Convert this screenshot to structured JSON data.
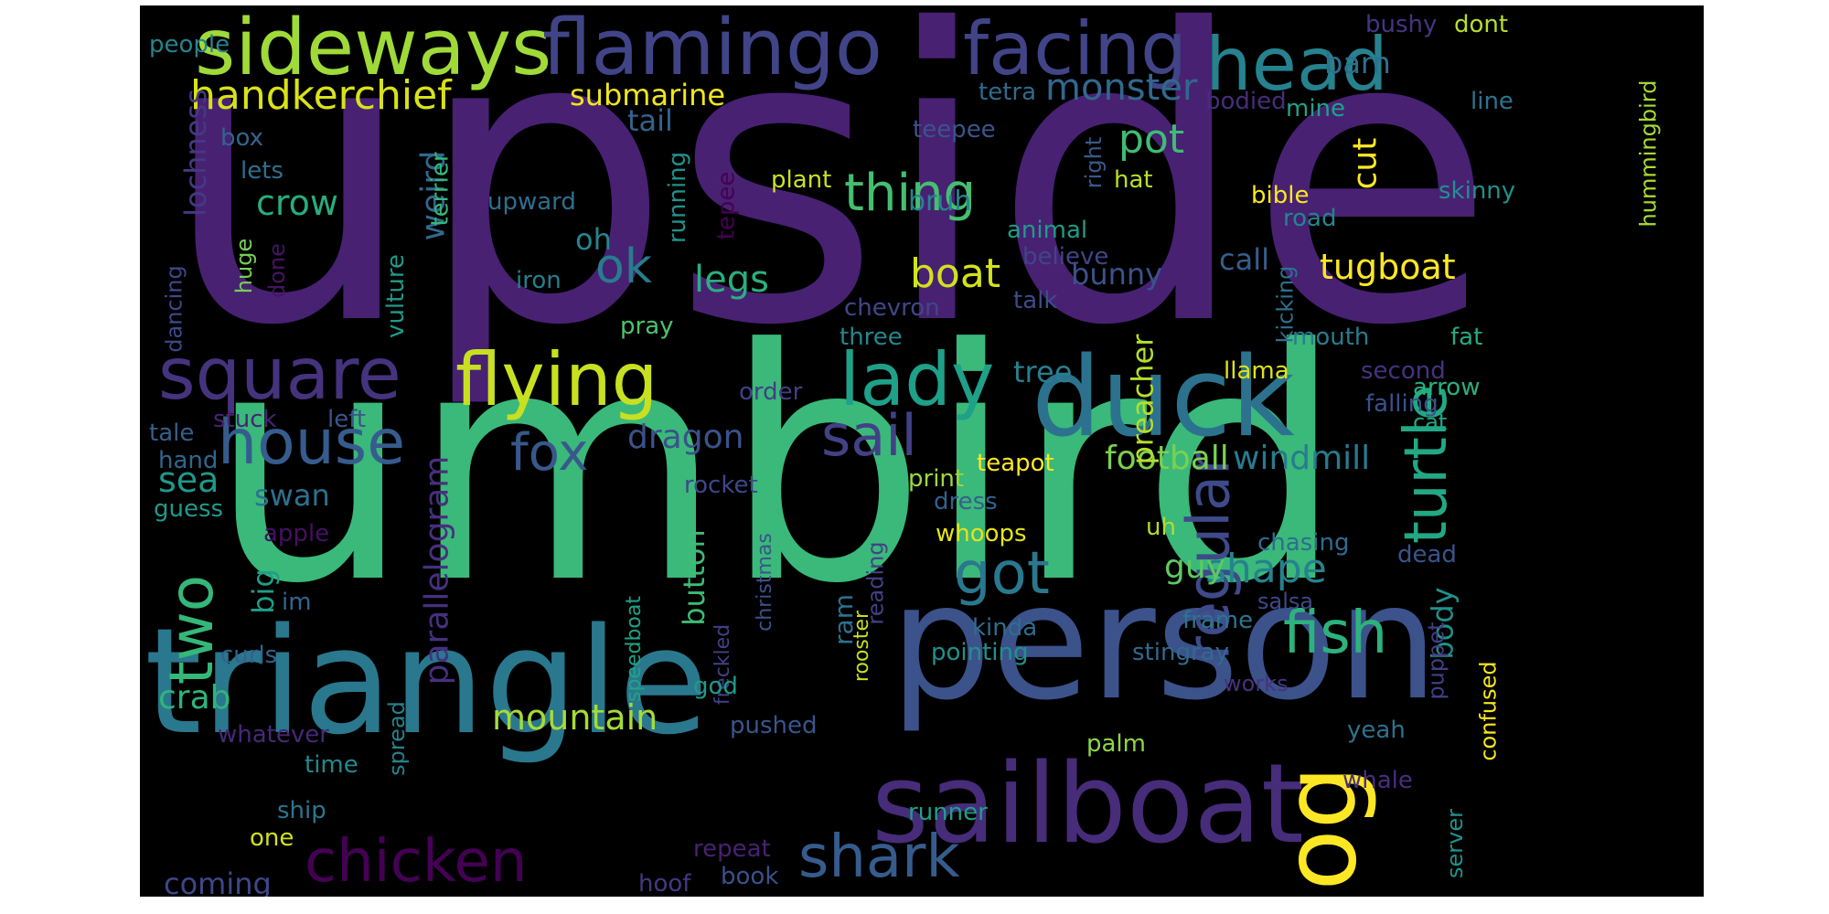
{
  "words": [
    {
      "text": "upside",
      "color": "#482173",
      "rotated": false
    },
    {
      "text": "umbird",
      "color": "#3ab97a",
      "rotated": false
    },
    {
      "text": "person",
      "color": "#3b528b",
      "rotated": false
    },
    {
      "text": "triangle",
      "color": "#2a788e",
      "rotated": false
    },
    {
      "text": "sailboat",
      "color": "#472c7a",
      "rotated": false
    },
    {
      "text": "duck",
      "color": "#2c728e",
      "rotated": false
    },
    {
      "text": "sideways",
      "color": "#a0da39",
      "rotated": false
    },
    {
      "text": "flamingo",
      "color": "#414487",
      "rotated": false
    },
    {
      "text": "facing",
      "color": "#414487",
      "rotated": false
    },
    {
      "text": "head",
      "color": "#26828e",
      "rotated": false
    },
    {
      "text": "flying",
      "color": "#c8e020",
      "rotated": false
    },
    {
      "text": "lady",
      "color": "#1fa088",
      "rotated": false
    },
    {
      "text": "square",
      "color": "#46337e",
      "rotated": false
    },
    {
      "text": "house",
      "color": "#365c8d",
      "rotated": false
    },
    {
      "text": "dog",
      "color": "#fde725",
      "rotated": true
    },
    {
      "text": "turtle",
      "color": "#22a884",
      "rotated": true
    },
    {
      "text": "regular",
      "color": "#3e4a89",
      "rotated": true
    },
    {
      "text": "chicken",
      "color": "#440154",
      "rotated": false
    },
    {
      "text": "shark",
      "color": "#365c8d",
      "rotated": false
    },
    {
      "text": "fish",
      "color": "#2db27d",
      "rotated": false
    },
    {
      "text": "two",
      "color": "#35b779",
      "rotated": true
    },
    {
      "text": "thing",
      "color": "#44bf70",
      "rotated": false
    },
    {
      "text": "sail",
      "color": "#424186",
      "rotated": false
    },
    {
      "text": "got",
      "color": "#2a788e",
      "rotated": false
    },
    {
      "text": "fox",
      "color": "#38588c",
      "rotated": false
    },
    {
      "text": "handkerchief",
      "color": "#d8e219",
      "rotated": false
    },
    {
      "text": "monster",
      "color": "#31688e",
      "rotated": false
    },
    {
      "text": "submarine",
      "color": "#f1e51d",
      "rotated": false
    },
    {
      "text": "barn",
      "color": "#2d708e",
      "rotated": false
    },
    {
      "text": "pot",
      "color": "#3fbc73",
      "rotated": false
    },
    {
      "text": "tail",
      "color": "#33638d",
      "rotated": false
    },
    {
      "text": "ok",
      "color": "#287c8e",
      "rotated": false
    },
    {
      "text": "legs",
      "color": "#29af7f",
      "rotated": false
    },
    {
      "text": "boat",
      "color": "#d2e21b",
      "rotated": false
    },
    {
      "text": "tugboat",
      "color": "#fde725",
      "rotated": false
    },
    {
      "text": "crow",
      "color": "#27ad81",
      "rotated": false
    },
    {
      "text": "weird",
      "color": "#31688e",
      "rotated": true
    },
    {
      "text": "lochness",
      "color": "#443983",
      "rotated": true
    },
    {
      "text": "football",
      "color": "#7ad151",
      "rotated": false
    },
    {
      "text": "windmill",
      "color": "#297b8e",
      "rotated": false
    },
    {
      "text": "preacher",
      "color": "#b5de2b",
      "rotated": true
    },
    {
      "text": "dragon",
      "color": "#3b528b",
      "rotated": false
    },
    {
      "text": "shape",
      "color": "#26828e",
      "rotated": false
    },
    {
      "text": "mountain",
      "color": "#a5db36",
      "rotated": false
    },
    {
      "text": "parallelogram",
      "color": "#46307e",
      "rotated": true
    },
    {
      "text": "sea",
      "color": "#1f998a",
      "rotated": false
    },
    {
      "text": "swan",
      "color": "#2d718e",
      "rotated": false
    },
    {
      "text": "crab",
      "color": "#2fb47c",
      "rotated": false
    },
    {
      "text": "guy",
      "color": "#5ec962",
      "rotated": false
    },
    {
      "text": "body",
      "color": "#21918c",
      "rotated": true
    },
    {
      "text": "button",
      "color": "#3dbc74",
      "rotated": true
    },
    {
      "text": "tree",
      "color": "#277f8e",
      "rotated": false
    },
    {
      "text": "bunny",
      "color": "#3b528b",
      "rotated": false
    },
    {
      "text": "call",
      "color": "#355f8d",
      "rotated": false
    },
    {
      "text": "cut",
      "color": "#fde725",
      "rotated": true
    },
    {
      "text": "bruh",
      "color": "#25848e",
      "rotated": false
    },
    {
      "text": "oh",
      "color": "#25858e",
      "rotated": false
    },
    {
      "text": "coming",
      "color": "#3f4788",
      "rotated": false
    },
    {
      "text": "big",
      "color": "#1f9e89",
      "rotated": true
    },
    {
      "text": "ram",
      "color": "#2c728e",
      "rotated": true
    },
    {
      "text": "rooster",
      "color": "#c2df23",
      "rotated": true
    },
    {
      "text": "christmas",
      "color": "#3b528b",
      "rotated": true
    },
    {
      "text": "speedboat",
      "color": "#20a386",
      "rotated": true
    },
    {
      "text": "freckled",
      "color": "#424086",
      "rotated": true
    },
    {
      "text": "people",
      "color": "#25848e",
      "rotated": false
    },
    {
      "text": "box",
      "color": "#32658e",
      "rotated": false
    },
    {
      "text": "lets",
      "color": "#2e6f8e",
      "rotated": false
    },
    {
      "text": "dont",
      "color": "#b8de29",
      "rotated": false
    },
    {
      "text": "bushy",
      "color": "#453581",
      "rotated": false
    },
    {
      "text": "line",
      "color": "#2c738e",
      "rotated": false
    },
    {
      "text": "mine",
      "color": "#1fa188",
      "rotated": false
    },
    {
      "text": "hummingbird",
      "color": "#a8db34",
      "rotated": true
    },
    {
      "text": "tetra",
      "color": "#306a8e",
      "rotated": false
    },
    {
      "text": "bodied",
      "color": "#472d7b",
      "rotated": false
    },
    {
      "text": "teepee",
      "color": "#3a548c",
      "rotated": false
    },
    {
      "text": "right",
      "color": "#38598c",
      "rotated": true
    },
    {
      "text": "hat",
      "color": "#bade28",
      "rotated": false
    },
    {
      "text": "plant",
      "color": "#cae11f",
      "rotated": false
    },
    {
      "text": "bible",
      "color": "#fbe723",
      "rotated": false
    },
    {
      "text": "skinny",
      "color": "#21908d",
      "rotated": false
    },
    {
      "text": "road",
      "color": "#25858e",
      "rotated": false
    },
    {
      "text": "upward",
      "color": "#2e6e8e",
      "rotated": false
    },
    {
      "text": "terrier",
      "color": "#35b779",
      "rotated": true
    },
    {
      "text": "vulture",
      "color": "#1f9a8a",
      "rotated": true
    },
    {
      "text": "running",
      "color": "#20928c",
      "rotated": true
    },
    {
      "text": "tepee",
      "color": "#440154",
      "rotated": true
    },
    {
      "text": "animal",
      "color": "#1e9c89",
      "rotated": false
    },
    {
      "text": "believe",
      "color": "#404588",
      "rotated": false
    },
    {
      "text": "iron",
      "color": "#287d8e",
      "rotated": false
    },
    {
      "text": "huge",
      "color": "#75d054",
      "rotated": true
    },
    {
      "text": "done",
      "color": "#471365",
      "rotated": true
    },
    {
      "text": "dancing",
      "color": "#3f4889",
      "rotated": true
    },
    {
      "text": "chevron",
      "color": "#3f4788",
      "rotated": false
    },
    {
      "text": "talk",
      "color": "#3e4c8a",
      "rotated": false
    },
    {
      "text": "three",
      "color": "#24878e",
      "rotated": false
    },
    {
      "text": "pray",
      "color": "#4ec36b",
      "rotated": false
    },
    {
      "text": "kicking",
      "color": "#2c718e",
      "rotated": true
    },
    {
      "text": "mouth",
      "color": "#287c8e",
      "rotated": false
    },
    {
      "text": "fat",
      "color": "#25ab82",
      "rotated": false
    },
    {
      "text": "llama",
      "color": "#dde318",
      "rotated": false
    },
    {
      "text": "second",
      "color": "#46337f",
      "rotated": false
    },
    {
      "text": "arrow",
      "color": "#2ab07f",
      "rotated": false
    },
    {
      "text": "falling",
      "color": "#3b518b",
      "rotated": false
    },
    {
      "text": "order",
      "color": "#433e85",
      "rotated": false
    },
    {
      "text": "cat",
      "color": "#22a785",
      "rotated": false
    },
    {
      "text": "stuck",
      "color": "#482475",
      "rotated": false
    },
    {
      "text": "left",
      "color": "#3a548c",
      "rotated": false
    },
    {
      "text": "tale",
      "color": "#34608d",
      "rotated": false
    },
    {
      "text": "hand",
      "color": "#31678e",
      "rotated": false
    },
    {
      "text": "teapot",
      "color": "#fde725",
      "rotated": false
    },
    {
      "text": "rocket",
      "color": "#3f4788",
      "rotated": false
    },
    {
      "text": "print",
      "color": "#9bd93c",
      "rotated": false
    },
    {
      "text": "dress",
      "color": "#34618d",
      "rotated": false
    },
    {
      "text": "guess",
      "color": "#1f998a",
      "rotated": false
    },
    {
      "text": "apple",
      "color": "#471063",
      "rotated": false
    },
    {
      "text": "whoops",
      "color": "#e5e419",
      "rotated": false
    },
    {
      "text": "uh",
      "color": "#b2dd2d",
      "rotated": false
    },
    {
      "text": "chasing",
      "color": "#2e6d8e",
      "rotated": false
    },
    {
      "text": "dead",
      "color": "#3a538b",
      "rotated": false
    },
    {
      "text": "reading",
      "color": "#424186",
      "rotated": true
    },
    {
      "text": "salsa",
      "color": "#3e4989",
      "rotated": false
    },
    {
      "text": "frame",
      "color": "#2b758e",
      "rotated": false
    },
    {
      "text": "im",
      "color": "#32658e",
      "rotated": false
    },
    {
      "text": "kinda",
      "color": "#2f6c8e",
      "rotated": false
    },
    {
      "text": "pointing",
      "color": "#21918c",
      "rotated": false
    },
    {
      "text": "stingray",
      "color": "#2f6b8e",
      "rotated": false
    },
    {
      "text": "puppet",
      "color": "#423f85",
      "rotated": true
    },
    {
      "text": "curls",
      "color": "#34618d",
      "rotated": false
    },
    {
      "text": "works",
      "color": "#46327e",
      "rotated": false
    },
    {
      "text": "confused",
      "color": "#f6e620",
      "rotated": true
    },
    {
      "text": "god",
      "color": "#1e9b8a",
      "rotated": false
    },
    {
      "text": "whatever",
      "color": "#482878",
      "rotated": false
    },
    {
      "text": "spread",
      "color": "#26828e",
      "rotated": true
    },
    {
      "text": "pushed",
      "color": "#39558c",
      "rotated": false
    },
    {
      "text": "palm",
      "color": "#8ed645",
      "rotated": false
    },
    {
      "text": "yeah",
      "color": "#2c728e",
      "rotated": false
    },
    {
      "text": "whale",
      "color": "#4a2e7f",
      "rotated": false
    },
    {
      "text": "time",
      "color": "#23888e",
      "rotated": false
    },
    {
      "text": "runner",
      "color": "#1f9f88",
      "rotated": false
    },
    {
      "text": "server",
      "color": "#20928c",
      "rotated": true
    },
    {
      "text": "ship",
      "color": "#2a768e",
      "rotated": false
    },
    {
      "text": "one",
      "color": "#d0e11c",
      "rotated": false
    },
    {
      "text": "repeat",
      "color": "#482173",
      "rotated": false
    },
    {
      "text": "hoof",
      "color": "#453882",
      "rotated": false
    },
    {
      "text": "book",
      "color": "#3b518b",
      "rotated": false
    }
  ]
}
